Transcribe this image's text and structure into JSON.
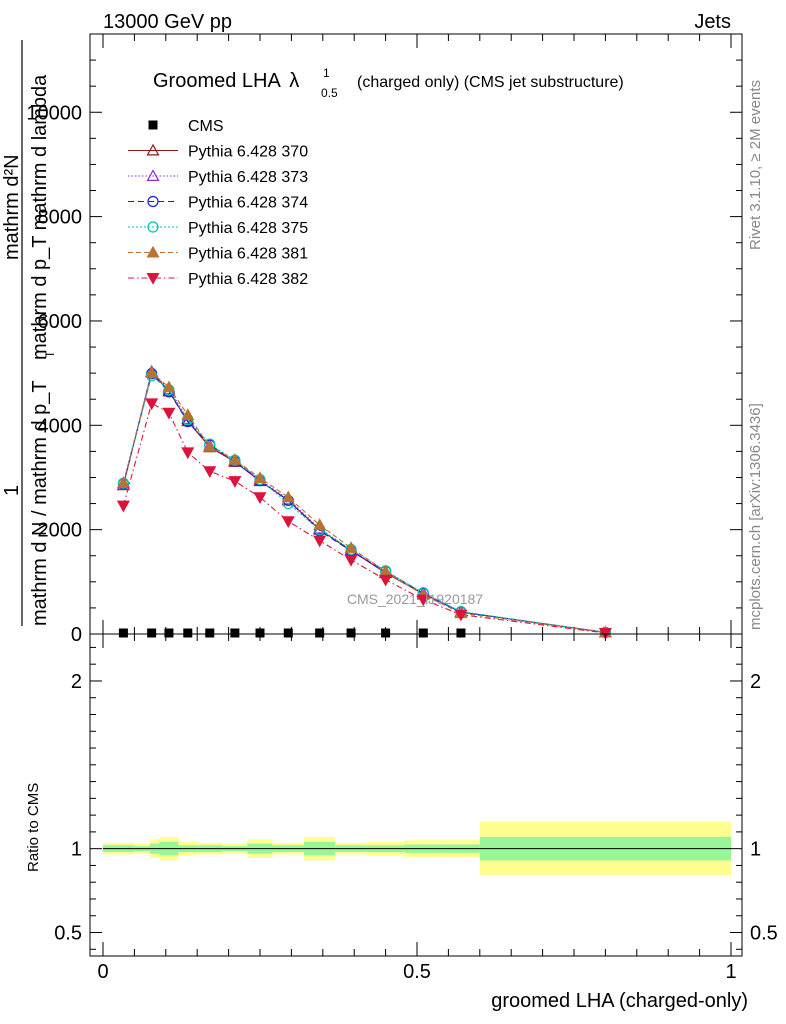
{
  "header": {
    "left": "13000 GeV pp",
    "right": "Jets"
  },
  "side_labels": {
    "rivet": "Rivet 3.1.10, ≥ 2M events",
    "mcplots": "mcplots.cern.ch [arXiv:1306.3436]"
  },
  "watermark": "CMS_2021_I1920187",
  "chart_data": [
    {
      "type": "line",
      "title_main": "Groomed LHA",
      "title_symbol": "λ",
      "title_sup": "1",
      "title_sub": "0.5",
      "title_suffix": "(charged only) (CMS jet substructure)",
      "ylabel_numerator": "mathrm d²N",
      "ylabel_denominator": "mathrm d p_T mathrm d lambda",
      "ylabel_one": "1",
      "ylabel_bottom": "mathrm d N / mathrm d p_T",
      "ylabel_bottom_sub": "T",
      "xlim": [
        0,
        1
      ],
      "ylim": [
        0,
        11500
      ],
      "yticks": [
        0,
        2000,
        4000,
        6000,
        8000,
        10000
      ],
      "ytick_labels": [
        "0",
        "2000",
        "4000",
        "6000",
        "8000",
        "10000"
      ],
      "x": [
        0.0325,
        0.0775,
        0.105,
        0.135,
        0.17,
        0.21,
        0.25,
        0.295,
        0.345,
        0.395,
        0.45,
        0.51,
        0.57,
        0.8
      ],
      "cms": {
        "name": "CMS",
        "x": [
          0.0325,
          0.0775,
          0.105,
          0.135,
          0.17,
          0.21,
          0.25,
          0.295,
          0.345,
          0.395,
          0.45,
          0.51,
          0.57
        ],
        "values": [
          0,
          0,
          0,
          0,
          0,
          0,
          0,
          0,
          0,
          0,
          0,
          0,
          0
        ]
      },
      "series": [
        {
          "name": "Pythia 6.428 370",
          "color": "#8b1a1a",
          "marker": "triangle-open",
          "dash": "",
          "values": [
            2850,
            5020,
            4650,
            4080,
            3580,
            3300,
            2930,
            2560,
            2000,
            1600,
            1170,
            770,
            420,
            30
          ]
        },
        {
          "name": "Pythia 6.428 373",
          "color": "#8a2be2",
          "marker": "triangle-open",
          "dash": "1.5,2",
          "values": [
            2860,
            5030,
            4690,
            4120,
            3610,
            3320,
            2950,
            2580,
            2020,
            1610,
            1180,
            780,
            420,
            30
          ]
        },
        {
          "name": "Pythia 6.428 374",
          "color": "#1c1cd6",
          "marker": "circle-open",
          "dash": "6,4",
          "values": [
            2880,
            4990,
            4640,
            4070,
            3620,
            3310,
            2940,
            2560,
            1980,
            1590,
            1200,
            780,
            420,
            30
          ]
        },
        {
          "name": "Pythia 6.428 375",
          "color": "#00c4b4",
          "marker": "circle-open",
          "dash": "2,2",
          "values": [
            2890,
            4950,
            4680,
            4110,
            3640,
            3330,
            2960,
            2500,
            2000,
            1620,
            1210,
            790,
            430,
            30
          ]
        },
        {
          "name": "Pythia 6.428 381",
          "color": "#b87333",
          "marker": "triangle-filled",
          "dash": "5,3",
          "values": [
            2900,
            5010,
            4730,
            4200,
            3590,
            3340,
            2990,
            2620,
            2090,
            1650,
            1200,
            750,
            400,
            30
          ]
        },
        {
          "name": "Pythia 6.428 382",
          "color": "#dc143c",
          "marker": "triangle-down-filled",
          "dash": "6,3,1.5,3",
          "values": [
            2460,
            4420,
            4240,
            3480,
            3120,
            2930,
            2620,
            2160,
            1790,
            1420,
            1040,
            660,
            370,
            20
          ]
        }
      ],
      "legend": {
        "placement": "top-left"
      }
    },
    {
      "type": "area",
      "ylabel": "Ratio to CMS",
      "xlabel": "groomed LHA (charged-only)",
      "xlim": [
        0,
        1
      ],
      "ylim": [
        0.36,
        2.28
      ],
      "yticks": [
        0.5,
        1,
        2
      ],
      "ytick_labels": [
        "0.5",
        "1",
        "2"
      ],
      "xticks": [
        0,
        0.5,
        1
      ],
      "xtick_labels": [
        "0",
        "0.5",
        "1"
      ],
      "bins": [
        0,
        0.05,
        0.075,
        0.09,
        0.12,
        0.15,
        0.19,
        0.23,
        0.27,
        0.32,
        0.37,
        0.42,
        0.48,
        0.54,
        0.6,
        1.0
      ],
      "stat_band": [
        0.02,
        0.015,
        0.03,
        0.04,
        0.02,
        0.02,
        0.015,
        0.03,
        0.02,
        0.04,
        0.02,
        0.02,
        0.025,
        0.025,
        0.07
      ],
      "total_band": [
        0.035,
        0.03,
        0.055,
        0.07,
        0.04,
        0.035,
        0.03,
        0.055,
        0.035,
        0.07,
        0.035,
        0.04,
        0.05,
        0.05,
        0.16
      ],
      "colors": {
        "stat": "#98f598",
        "total": "#fdfd90",
        "line": "#000000"
      }
    }
  ]
}
